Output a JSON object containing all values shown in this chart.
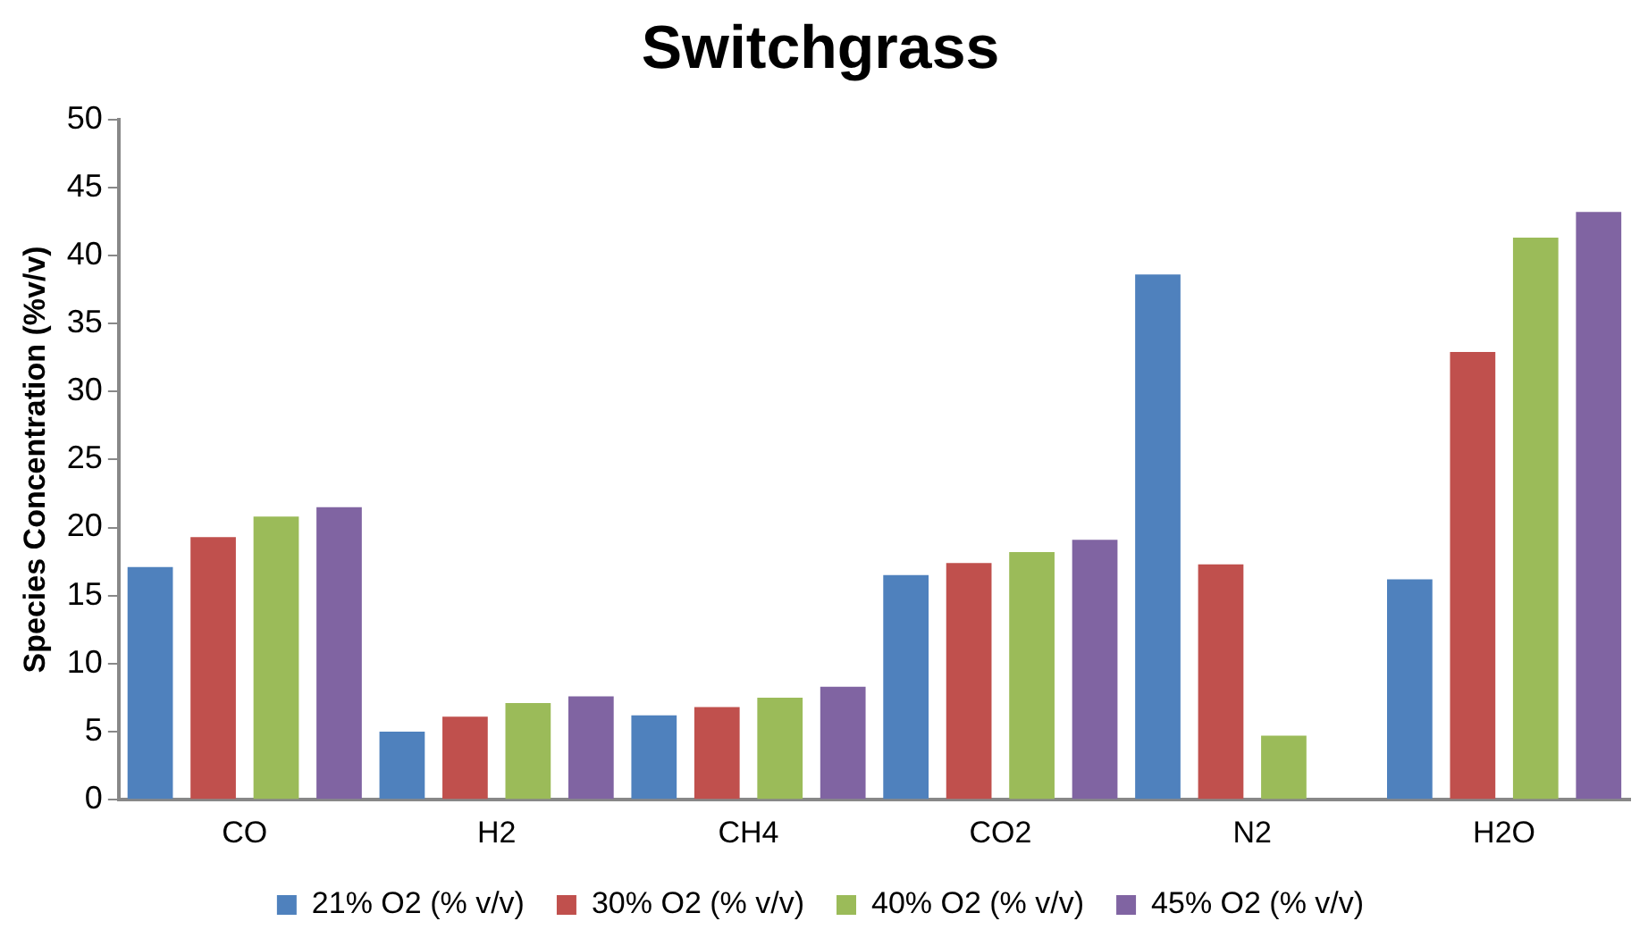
{
  "chart_data": {
    "type": "bar",
    "title": "Switchgrass",
    "ylabel": "Species Concentration (%v/v)",
    "categories": [
      "CO",
      "H2",
      "CH4",
      "CO2",
      "N2",
      "H2O"
    ],
    "series": [
      {
        "name": "21% O2 (% v/v)",
        "color": "#4f81bd",
        "values": [
          17.1,
          5.0,
          6.2,
          16.5,
          38.6,
          16.2
        ]
      },
      {
        "name": "30% O2 (% v/v)",
        "color": "#c0504d",
        "values": [
          19.3,
          6.1,
          6.8,
          17.4,
          17.3,
          32.9
        ]
      },
      {
        "name": "40% O2 (% v/v)",
        "color": "#9bbb59",
        "values": [
          20.8,
          7.1,
          7.5,
          18.2,
          4.7,
          41.3
        ]
      },
      {
        "name": "45% O2 (% v/v)",
        "color": "#8064a2",
        "values": [
          21.5,
          7.6,
          8.3,
          19.1,
          0,
          43.2
        ]
      }
    ],
    "ylim": [
      0,
      50
    ],
    "yticks": [
      0,
      5,
      10,
      15,
      20,
      25,
      30,
      35,
      40,
      45,
      50
    ],
    "grid": false,
    "legend": "bottom"
  }
}
